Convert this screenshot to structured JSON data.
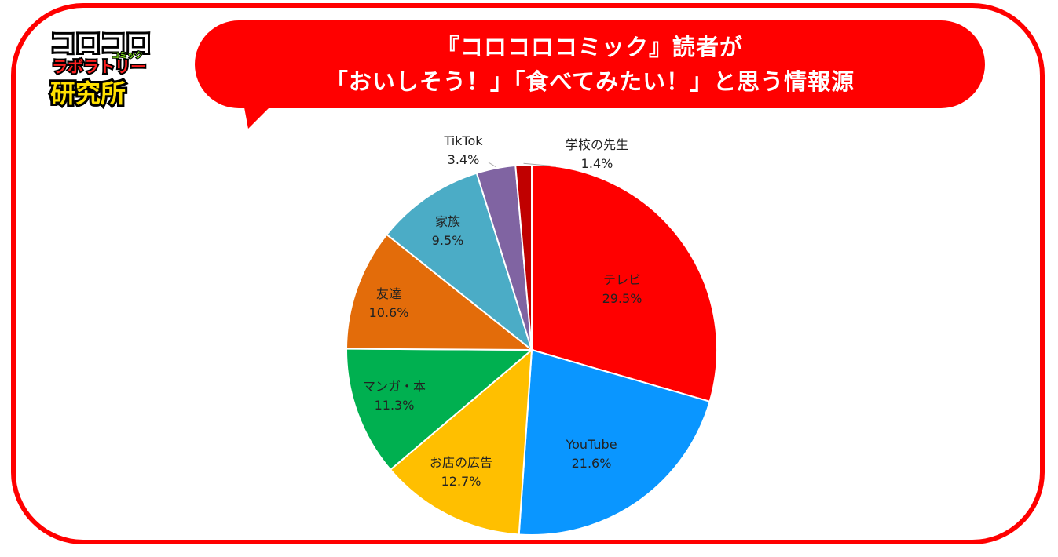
{
  "logo": {
    "line1": "コロコロ",
    "line2": "ラボラトリー",
    "line2_small": "コミック",
    "line3": "研究所"
  },
  "title": {
    "line1": "『コロコロコミック』読者が",
    "line2": "「おいしそう！」「食べてみたい！」と思う情報源"
  },
  "colors": {
    "frame": "#ff0000",
    "bubble": "#ff0000",
    "title_text": "#ffffff"
  },
  "chart_data": {
    "type": "pie",
    "start": "12 o'clock, clockwise",
    "slices": [
      {
        "label": "テレビ",
        "value": 29.5,
        "display": "29.5%",
        "color": "#ff0000"
      },
      {
        "label": "YouTube",
        "value": 21.6,
        "display": "21.6%",
        "color": "#0a96ff"
      },
      {
        "label": "お店の広告",
        "value": 12.7,
        "display": "12.7%",
        "color": "#ffbf00"
      },
      {
        "label": "マンガ・本",
        "value": 11.3,
        "display": "11.3%",
        "color": "#00b050"
      },
      {
        "label": "友達",
        "value": 10.6,
        "display": "10.6%",
        "color": "#e36c0a"
      },
      {
        "label": "家族",
        "value": 9.5,
        "display": "9.5%",
        "color": "#4bacc6"
      },
      {
        "label": "TikTok",
        "value": 3.4,
        "display": "3.4%",
        "color": "#8064a2"
      },
      {
        "label": "学校の先生",
        "value": 1.4,
        "display": "1.4%",
        "color": "#c00000"
      }
    ]
  }
}
